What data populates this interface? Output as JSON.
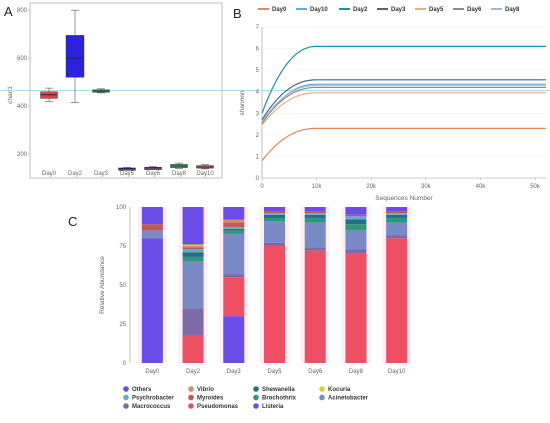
{
  "chart_data": [
    {
      "panel": "A",
      "type": "box",
      "ylabel": "chao1",
      "categories": [
        "Day0",
        "Day2",
        "Day3",
        "Day5",
        "Day6",
        "Day8",
        "Day10"
      ],
      "yticks": [
        200,
        400,
        600,
        800
      ],
      "ylim": [
        100,
        830
      ],
      "reference_line": 465,
      "boxes": [
        {
          "name": "Day0",
          "min": 420,
          "q1": 432,
          "median": 447,
          "q3": 460,
          "max": 475,
          "color": "#d9414f"
        },
        {
          "name": "Day2",
          "min": 415,
          "q1": 520,
          "median": 600,
          "q3": 695,
          "max": 800,
          "color": "#2b22e0"
        },
        {
          "name": "Day3",
          "min": 455,
          "q1": 458,
          "median": 463,
          "q3": 468,
          "max": 472,
          "color": "#2e8a6e"
        },
        {
          "name": "Day5",
          "min": 137,
          "q1": 138,
          "median": 140,
          "q3": 142,
          "max": 144,
          "color": "#3f4fa0"
        },
        {
          "name": "Day6",
          "min": 136,
          "q1": 138,
          "median": 142,
          "q3": 145,
          "max": 148,
          "color": "#8a4f9a"
        },
        {
          "name": "Day8",
          "min": 140,
          "q1": 143,
          "median": 150,
          "q3": 157,
          "max": 162,
          "color": "#3ba063"
        },
        {
          "name": "Day10",
          "min": 138,
          "q1": 141,
          "median": 146,
          "q3": 152,
          "max": 156,
          "color": "#c0553f"
        }
      ]
    },
    {
      "panel": "B",
      "type": "line",
      "xlabel": "Sequences Number",
      "ylabel": "shannon",
      "xlim": [
        0,
        52000
      ],
      "ylim": [
        0,
        7
      ],
      "xticks": [
        0,
        10000,
        20000,
        30000,
        40000,
        50000
      ],
      "xtick_labels": [
        "0",
        "10k",
        "20k",
        "30k",
        "40k",
        "50k"
      ],
      "yticks": [
        0,
        1,
        2,
        3,
        4,
        5,
        6,
        7
      ],
      "legend": [
        "Day0",
        "Day10",
        "Day2",
        "Day3",
        "Day5",
        "Day6",
        "Day8"
      ],
      "series": [
        {
          "name": "Day0",
          "color": "#e08a5a",
          "start": 0.8,
          "plateau": 2.3
        },
        {
          "name": "Day10",
          "color": "#5ab0d6",
          "start": 2.5,
          "plateau": 4.35
        },
        {
          "name": "Day2",
          "color": "#1f8fb0",
          "start": 3.0,
          "plateau": 6.1
        },
        {
          "name": "Day3",
          "color": "#4a6a88",
          "start": 2.7,
          "plateau": 4.55
        },
        {
          "name": "Day5",
          "color": "#e6b07a",
          "start": 2.45,
          "plateau": 3.95
        },
        {
          "name": "Day6",
          "color": "#8a8a9a",
          "start": 2.55,
          "plateau": 4.2
        },
        {
          "name": "Day8",
          "color": "#9fb6d6",
          "start": 2.6,
          "plateau": 4.3
        }
      ]
    },
    {
      "panel": "C",
      "type": "stacked_bar",
      "ylabel": "Relative Abundance",
      "ylim": [
        0,
        100
      ],
      "yticks": [
        0,
        25,
        50,
        75,
        100
      ],
      "categories": [
        "Day0",
        "Day2",
        "Day3",
        "Day5",
        "Day6",
        "Day8",
        "Day10"
      ],
      "series": [
        {
          "name": "Listeria",
          "color": "#6b4ee8",
          "values": [
            80,
            0,
            30,
            0,
            0,
            0,
            0
          ]
        },
        {
          "name": "Pseudomonas",
          "color": "#ef4f63",
          "values": [
            0,
            18,
            25,
            75,
            72,
            70,
            80
          ]
        },
        {
          "name": "Macrococcus",
          "color": "#7d6aa8",
          "values": [
            0,
            17,
            2,
            2,
            2,
            3,
            2
          ]
        },
        {
          "name": "Acinetobacter",
          "color": "#7a8ac6",
          "values": [
            5,
            30,
            26,
            14,
            16,
            12,
            8
          ]
        },
        {
          "name": "Brochothrix",
          "color": "#2e9a7a",
          "values": [
            0,
            3,
            2,
            2,
            3,
            4,
            3
          ]
        },
        {
          "name": "Shewanella",
          "color": "#2a6a8a",
          "values": [
            0,
            3,
            1,
            2,
            2,
            3,
            2
          ]
        },
        {
          "name": "Psychrobacter",
          "color": "#5fb0c8",
          "values": [
            0,
            2,
            1,
            1,
            1,
            2,
            1
          ]
        },
        {
          "name": "Myroides",
          "color": "#c05a55",
          "values": [
            4,
            1,
            3,
            1,
            1,
            1,
            1
          ]
        },
        {
          "name": "Vibrio",
          "color": "#d98a6a",
          "values": [
            0,
            1,
            2,
            0,
            0,
            0,
            0
          ]
        },
        {
          "name": "Kocuria",
          "color": "#d6d62a",
          "values": [
            0,
            1,
            0,
            0,
            0,
            0,
            0
          ]
        },
        {
          "name": "Others",
          "color": "#6b4ee8",
          "values": [
            11,
            24,
            8,
            3,
            3,
            5,
            3
          ]
        }
      ],
      "legend": [
        [
          "Others",
          "Psychrobacter",
          "Macrococcus"
        ],
        [
          "Vibrio",
          "Myroides",
          "Pseudomonas"
        ],
        [
          "Shewanella",
          "Brochothrix",
          "Listeria"
        ],
        [
          "Kocuria",
          "Acinetobacter"
        ]
      ]
    }
  ]
}
